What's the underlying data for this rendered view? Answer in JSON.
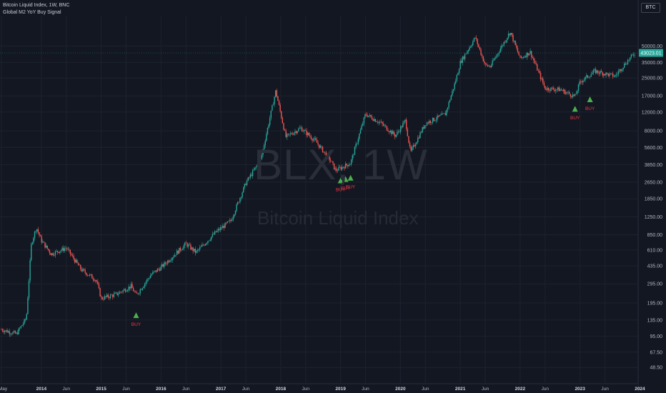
{
  "header": {
    "symbol_line": "Bitcoin Liquid Index, 1W, BNC",
    "indicator_line": "Global M2 YoY Buy Signal",
    "symbol_button": "BTC"
  },
  "watermark": {
    "symbol": "BLX, 1W",
    "name": "Bitcoin Liquid Index"
  },
  "colors": {
    "background": "#131722",
    "grid": "#1e222d",
    "up": "#26a69a",
    "down": "#ef5350",
    "buy_marker": "#4caf50",
    "buy_text": "#f23645",
    "last_price_bg": "#26a69a",
    "axis_text": "#b2b5be"
  },
  "chart_data": {
    "type": "candlestick",
    "title": "Bitcoin Liquid Index, 1W, BNC",
    "y_scale": "log",
    "ylim": [
      43,
      99000
    ],
    "y_ticks": [
      "50000.00",
      "35000.00",
      "25000.00",
      "17000.00",
      "12000.00",
      "8000.00",
      "5600.00",
      "3850.00",
      "2650.00",
      "1850.00",
      "1250.00",
      "850.00",
      "610.00",
      "435.00",
      "295.00",
      "195.00",
      "135.00",
      "95.00",
      "67.50",
      "48.50"
    ],
    "x_ticks": [
      "May",
      "2014",
      "Jun",
      "2015",
      "Jun",
      "2016",
      "Jun",
      "2017",
      "Jun",
      "2018",
      "Jun",
      "2019",
      "Jun",
      "2020",
      "Jun",
      "2021",
      "Jun",
      "2022",
      "Jun",
      "2023",
      "Jun",
      "2024"
    ],
    "last_price": "43023.01",
    "price_path": [
      [
        "2013-05",
        110
      ],
      [
        "2013-08",
        100
      ],
      [
        "2013-10",
        140
      ],
      [
        "2013-11",
        700
      ],
      [
        "2013-12",
        1000
      ],
      [
        "2014-01",
        750
      ],
      [
        "2014-03",
        560
      ],
      [
        "2014-06",
        640
      ],
      [
        "2014-09",
        400
      ],
      [
        "2014-12",
        320
      ],
      [
        "2015-01",
        215
      ],
      [
        "2015-04",
        235
      ],
      [
        "2015-07",
        280
      ],
      [
        "2015-08",
        230
      ],
      [
        "2015-11",
        360
      ],
      [
        "2016-01",
        420
      ],
      [
        "2016-06",
        700
      ],
      [
        "2016-08",
        580
      ],
      [
        "2016-12",
        900
      ],
      [
        "2017-03",
        1150
      ],
      [
        "2017-06",
        2600
      ],
      [
        "2017-09",
        4300
      ],
      [
        "2017-12",
        19000
      ],
      [
        "2018-01",
        11500
      ],
      [
        "2018-02",
        7000
      ],
      [
        "2018-05",
        8500
      ],
      [
        "2018-08",
        6400
      ],
      [
        "2018-11",
        4200
      ],
      [
        "2018-12",
        3400
      ],
      [
        "2019-03",
        4000
      ],
      [
        "2019-06",
        11500
      ],
      [
        "2019-09",
        9500
      ],
      [
        "2019-12",
        7200
      ],
      [
        "2020-02",
        10000
      ],
      [
        "2020-03",
        5000
      ],
      [
        "2020-06",
        9400
      ],
      [
        "2020-10",
        11500
      ],
      [
        "2020-12",
        23000
      ],
      [
        "2021-01",
        35000
      ],
      [
        "2021-04",
        60000
      ],
      [
        "2021-06",
        33000
      ],
      [
        "2021-07",
        32000
      ],
      [
        "2021-09",
        47000
      ],
      [
        "2021-11",
        68000
      ],
      [
        "2022-01",
        38000
      ],
      [
        "2022-03",
        44000
      ],
      [
        "2022-06",
        20000
      ],
      [
        "2022-09",
        19500
      ],
      [
        "2022-12",
        16800
      ],
      [
        "2023-01",
        23000
      ],
      [
        "2023-04",
        29000
      ],
      [
        "2023-08",
        26000
      ],
      [
        "2023-10",
        34000
      ],
      [
        "2023-12",
        43023
      ]
    ],
    "buy_signals": [
      {
        "label": "BUY",
        "date": "2015-08",
        "price": 180
      },
      {
        "label": "BUY",
        "date": "2019-01",
        "price": 3300
      },
      {
        "label": "BUY",
        "date": "2019-02",
        "price": 3400
      },
      {
        "label": "BUY",
        "date": "2019-03",
        "price": 3500
      },
      {
        "label": "BUY",
        "date": "2022-12",
        "price": 15500
      },
      {
        "label": "BUY",
        "date": "2023-03",
        "price": 19000
      }
    ]
  }
}
